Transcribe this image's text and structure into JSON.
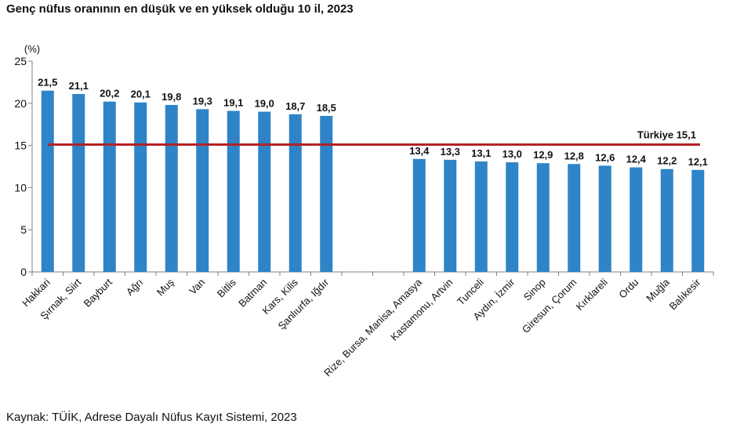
{
  "title": "Genç nüfus oranının en düşük ve en yüksek olduğu 10 il, 2023",
  "source": "Kaynak: TÜİK, Adrese Dayalı Nüfus Kayıt Sistemi, 2023",
  "colors": {
    "bar": "#2e84c6",
    "reference_line": "#b42226",
    "axis": "#808080",
    "text": "#111111"
  },
  "chart_data": {
    "type": "bar",
    "ylabel": "(%)",
    "ylim": [
      0,
      25
    ],
    "yticks": [
      "0",
      "5",
      "10",
      "15",
      "20",
      "25"
    ],
    "grid": false,
    "categories": [
      "Hakkari",
      "Şırnak, Siirt",
      "Bayburt",
      "Ağrı",
      "Muş",
      "Van",
      "Bitlis",
      "Batman",
      "Kars, Kilis",
      "Şanlıurfa, Iğdır",
      "",
      "",
      "Rize, Bursa, Manisa, Amasya",
      "Kastamonu, Artvin",
      "Tunceli",
      "Aydın, İzmir",
      "Sinop",
      "Giresun, Çorum",
      "Kırklareli",
      "Ordu",
      "Muğla",
      "Balıkesir"
    ],
    "values": [
      21.5,
      21.1,
      20.2,
      20.1,
      19.8,
      19.3,
      19.1,
      19.0,
      18.7,
      18.5,
      null,
      null,
      13.4,
      13.3,
      13.1,
      13.0,
      12.9,
      12.8,
      12.6,
      12.4,
      12.2,
      12.1
    ],
    "value_labels": [
      "21,5",
      "21,1",
      "20,2",
      "20,1",
      "19,8",
      "19,3",
      "19,1",
      "19,0",
      "18,7",
      "18,5",
      "",
      "",
      "13,4",
      "13,3",
      "13,1",
      "13,0",
      "12,9",
      "12,8",
      "12,6",
      "12,4",
      "12,2",
      "12,1"
    ],
    "reference_line": {
      "value": 15.1,
      "label": "Türkiye 15,1"
    }
  }
}
